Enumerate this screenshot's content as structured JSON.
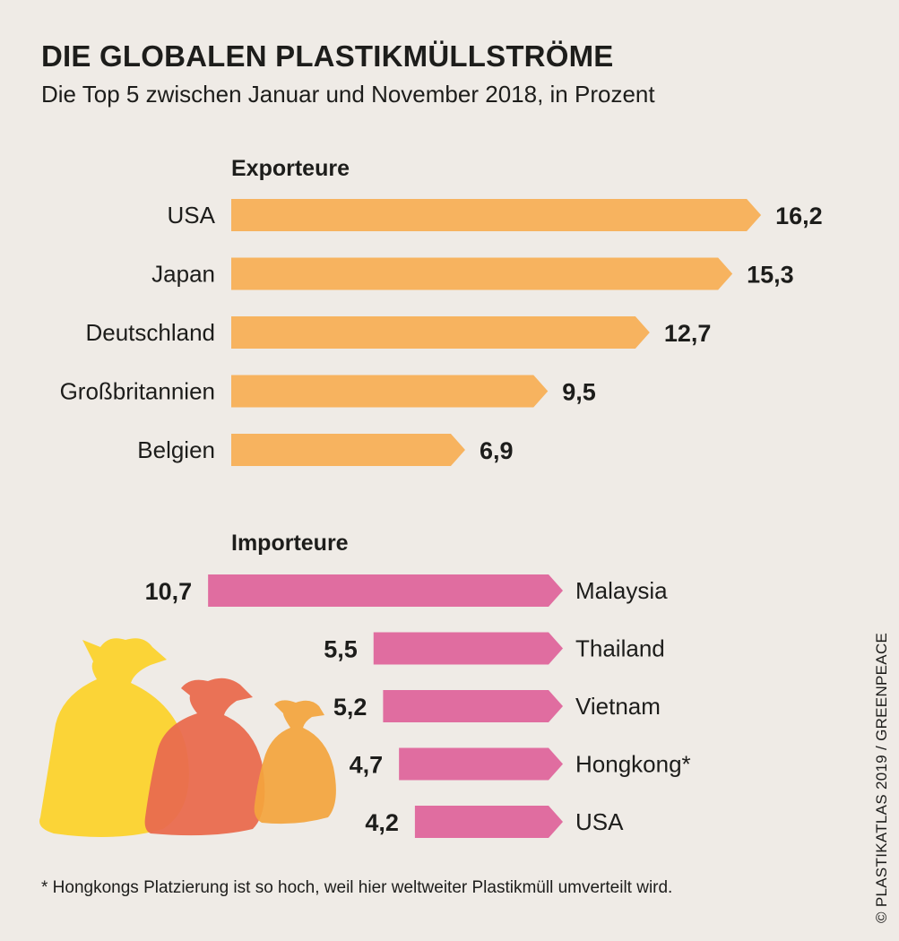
{
  "title": "DIE GLOBALEN PLASTIKMÜLLSTRÖME",
  "subtitle": "Die Top 5 zwischen Januar und November 2018, in Prozent",
  "footnote": "* Hongkongs Platzierung ist so hoch, weil hier weltweiter Plastikmüll umverteilt wird.",
  "credit": "© PLASTIKATLAS 2019 / GREENPEACE",
  "illustration": "plastic-bags-icon",
  "chart_data": [
    {
      "type": "bar",
      "title": "Exporteure",
      "categories": [
        "USA",
        "Japan",
        "Deutschland",
        "Großbritannien",
        "Belgien"
      ],
      "values": [
        16.2,
        15.3,
        12.7,
        9.5,
        6.9
      ],
      "value_labels": [
        "16,2",
        "15,3",
        "12,7",
        "9,5",
        "6,9"
      ],
      "direction": "right",
      "color": "#f7b35f"
    },
    {
      "type": "bar",
      "title": "Importeure",
      "categories": [
        "Malaysia",
        "Thailand",
        "Vietnam",
        "Hongkong*",
        "USA"
      ],
      "values": [
        10.7,
        5.5,
        5.2,
        4.7,
        4.2
      ],
      "value_labels": [
        "10,7",
        "5,5",
        "5,2",
        "4,7",
        "4,2"
      ],
      "direction": "left",
      "color": "#e06da0"
    }
  ],
  "colors": {
    "background": "#efebe6",
    "text": "#1d1d1b",
    "bag_yellow": "#fbd437",
    "bag_red": "#e96b4e",
    "bag_orange": "#f3a43d"
  }
}
